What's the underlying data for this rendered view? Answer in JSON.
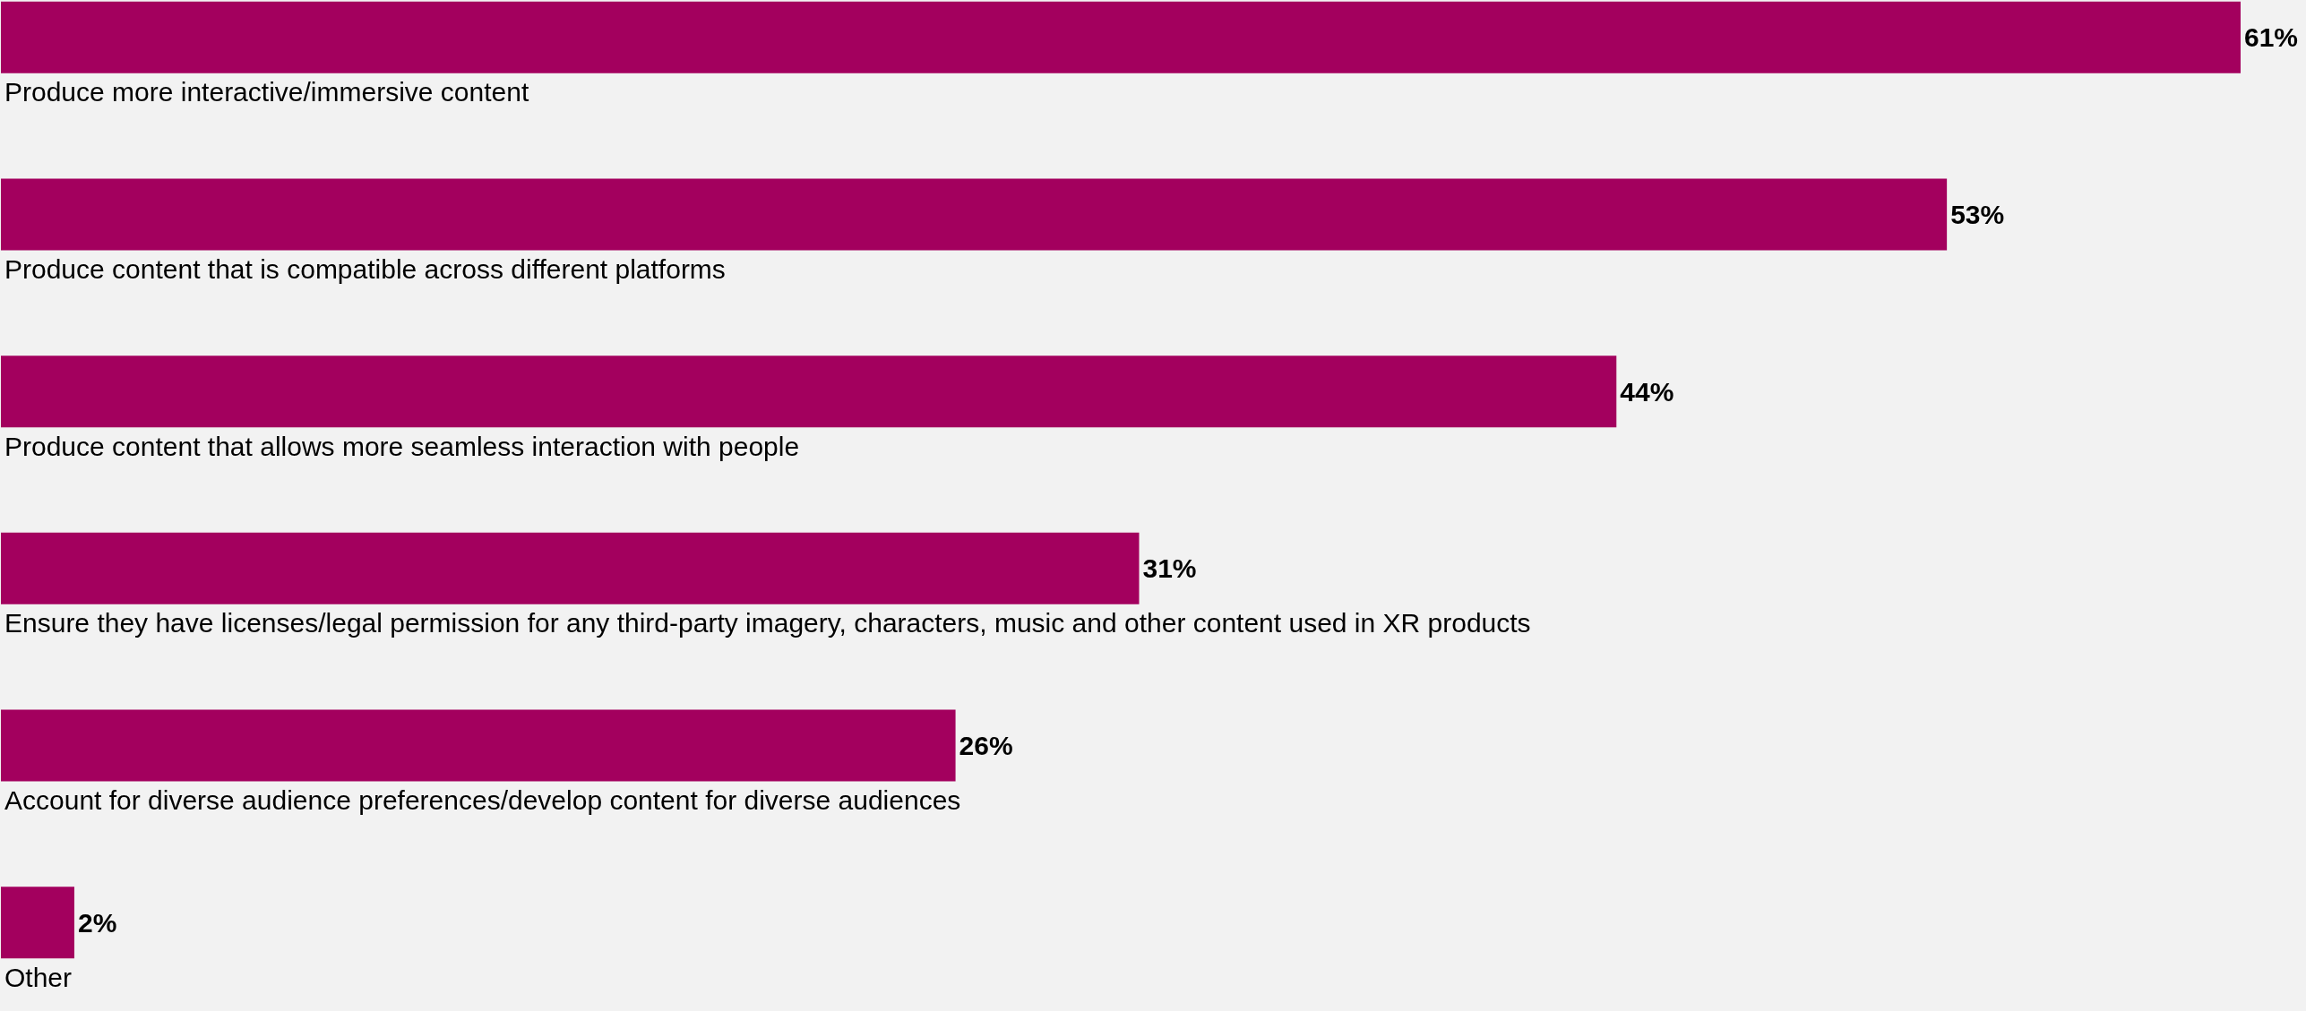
{
  "chart_data": {
    "type": "bar",
    "orientation": "horizontal",
    "categories": [
      "Produce more interactive/immersive content",
      "Produce content that is compatible across different platforms",
      "Produce content that allows more seamless interaction with people",
      "Ensure they have licenses/legal permission for any third-party imagery, characters, music and other content used in XR products",
      "Account for diverse audience preferences/develop content for diverse audiences",
      "Other"
    ],
    "values": [
      61,
      53,
      44,
      31,
      26,
      2
    ],
    "value_labels": [
      "61%",
      "53%",
      "44%",
      "31%",
      "26%",
      "2%"
    ],
    "color": "#a3005e"
  }
}
